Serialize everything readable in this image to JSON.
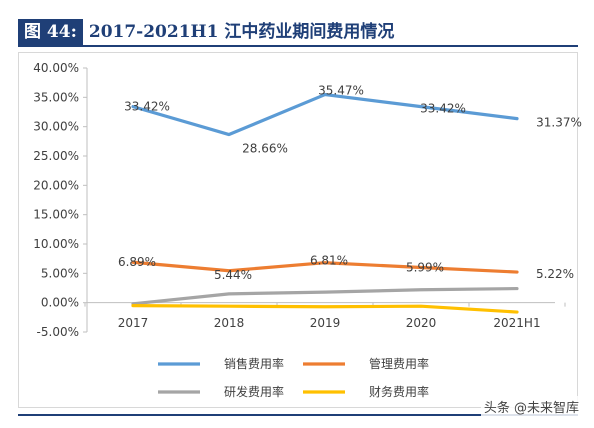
{
  "figure": {
    "tag": "图 44:",
    "title": "2017-2021H1 江中药业期间费用情况"
  },
  "watermark": "头条 @未来智库",
  "chart_data": {
    "type": "line",
    "categories": [
      "2017",
      "2018",
      "2019",
      "2020",
      "2021H1"
    ],
    "ylim": [
      -5,
      40
    ],
    "y_ticks": [
      "40.00%",
      "35.00%",
      "30.00%",
      "25.00%",
      "20.00%",
      "15.00%",
      "10.00%",
      "5.00%",
      "0.00%",
      "-5.00%"
    ],
    "y_tick_values": [
      40,
      35,
      30,
      25,
      20,
      15,
      10,
      5,
      0,
      -5
    ],
    "grid": false,
    "legend_position": "bottom",
    "series": [
      {
        "name": "销售费用率",
        "color": "#5b9bd5",
        "values": [
          33.42,
          28.66,
          35.47,
          33.42,
          31.37
        ],
        "labels": [
          "33.42%",
          "28.66%",
          "35.47%",
          "33.42%",
          "31.37%"
        ]
      },
      {
        "name": "管理费用率",
        "color": "#ed7d31",
        "values": [
          6.89,
          5.44,
          6.81,
          5.99,
          5.22
        ],
        "labels": [
          "6.89%",
          "5.44%",
          "6.81%",
          "5.99%",
          "5.22%"
        ]
      },
      {
        "name": "研发费用率",
        "color": "#a5a5a5",
        "values": [
          -0.2,
          1.5,
          1.8,
          2.2,
          2.4
        ],
        "labels": []
      },
      {
        "name": "财务费用率",
        "color": "#ffc000",
        "values": [
          -0.5,
          -0.6,
          -0.7,
          -0.6,
          -1.6
        ],
        "labels": []
      }
    ]
  }
}
